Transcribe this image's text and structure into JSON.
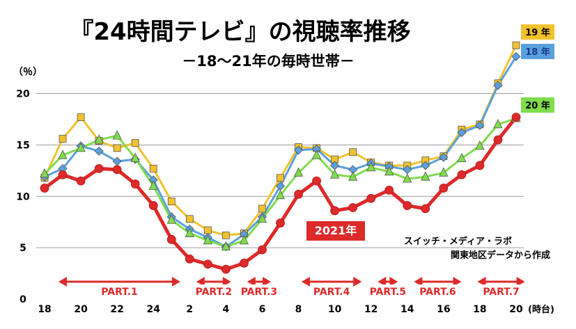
{
  "chart_data": {
    "type": "line",
    "title": "『24時間テレビ』の視聴率推移",
    "subtitle": "－18～21年の毎時世帯－",
    "ylabel": "（％）",
    "xlabel": "(時台)",
    "ylim": [
      0,
      22
    ],
    "yticks": [
      0,
      5,
      10,
      15,
      20
    ],
    "x": [
      "18",
      "19",
      "20",
      "21",
      "22",
      "23",
      "24",
      "1",
      "2",
      "3",
      "4",
      "5",
      "6",
      "7",
      "8",
      "9",
      "10",
      "11",
      "12",
      "13",
      "14",
      "15",
      "16",
      "17",
      "18",
      "19",
      "20"
    ],
    "xtick_labels": [
      "18",
      "20",
      "22",
      "24",
      "2",
      "4",
      "6",
      "8",
      "10",
      "12",
      "14",
      "16",
      "18",
      "20"
    ],
    "grid": true,
    "series": [
      {
        "name": "19 年",
        "color": "#f2c12e",
        "marker": "square",
        "values": [
          11.8,
          15.6,
          17.7,
          15.4,
          14.7,
          15.2,
          12.7,
          9.5,
          7.8,
          6.7,
          6.2,
          6.4,
          8.8,
          11.8,
          14.8,
          14.7,
          13.6,
          14.3,
          13.3,
          13.0,
          13.0,
          13.5,
          13.9,
          16.5,
          17.0,
          21.0,
          24.7
        ]
      },
      {
        "name": "18 年",
        "color": "#5aa0dc",
        "marker": "diamond",
        "values": [
          11.9,
          12.7,
          14.9,
          14.4,
          13.4,
          13.6,
          11.6,
          8.0,
          6.8,
          6.0,
          5.1,
          6.3,
          8.0,
          11.0,
          14.5,
          14.6,
          13.0,
          12.6,
          13.2,
          12.9,
          12.6,
          13.0,
          13.8,
          16.2,
          16.9,
          20.8,
          23.6
        ]
      },
      {
        "name": "20 年",
        "color": "#7fdc4c",
        "marker": "triangle",
        "values": [
          12.2,
          14.0,
          14.7,
          15.5,
          15.9,
          13.7,
          11.0,
          7.7,
          6.4,
          5.7,
          5.1,
          5.7,
          7.8,
          10.1,
          12.3,
          14.0,
          12.1,
          11.9,
          12.8,
          12.4,
          11.7,
          11.9,
          12.3,
          13.7,
          14.9,
          17.0,
          17.6
        ]
      },
      {
        "name": "2021年",
        "color": "#dd2a2a",
        "marker": "circle",
        "values": [
          10.8,
          12.1,
          11.5,
          12.7,
          12.6,
          11.2,
          9.1,
          5.8,
          3.9,
          3.4,
          2.9,
          3.5,
          4.8,
          7.4,
          10.2,
          11.5,
          8.6,
          8.9,
          9.8,
          10.6,
          9.1,
          8.8,
          10.8,
          12.1,
          13.0,
          15.5,
          17.7
        ]
      }
    ],
    "parts": [
      {
        "label": "PART.1",
        "start": 0,
        "end": 7.6
      },
      {
        "label": "PART.2",
        "start": 7.6,
        "end": 10.4
      },
      {
        "label": "PART.3",
        "start": 10.4,
        "end": 12.6
      },
      {
        "label": "PART.4",
        "start": 13.4,
        "end": 17.6
      },
      {
        "label": "PART.5",
        "start": 17.6,
        "end": 19.6
      },
      {
        "label": "PART.6",
        "start": 19.6,
        "end": 23.1
      },
      {
        "label": "PART.7",
        "start": 23.1,
        "end": 26.6
      }
    ],
    "annotations": [
      "スイッチ・メディア・ラボ",
      "関東地区データから作成"
    ]
  }
}
